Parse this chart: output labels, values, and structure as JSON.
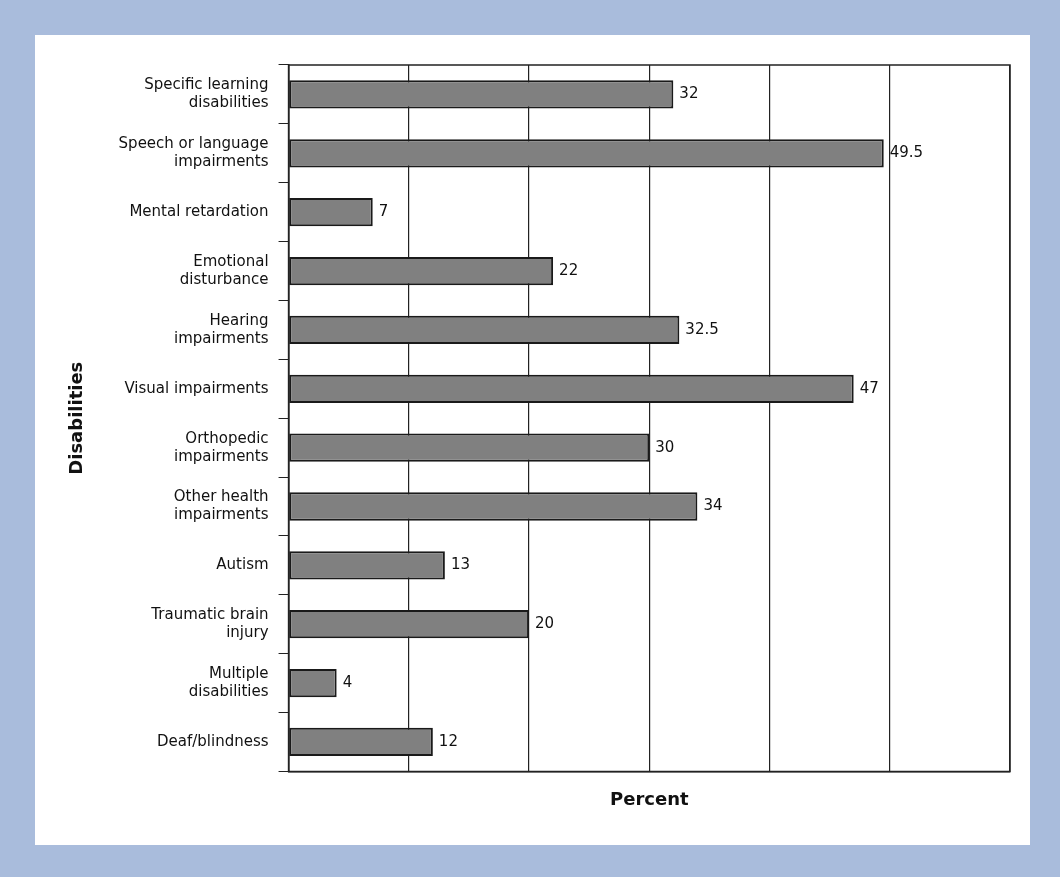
{
  "chart_data": {
    "type": "bar",
    "orientation": "horizontal",
    "xlabel": "Percent",
    "ylabel": "Disabilities",
    "categories": [
      "Specific learning disabilities",
      "Speech or language impairments",
      "Mental retardation",
      "Emotional disturbance",
      "Hearing impairments",
      "Visual impairments",
      "Orthopedic impairments",
      "Other health impairments",
      "Autism",
      "Traumatic brain injury",
      "Multiple disabilities",
      "Deaf/blindness"
    ],
    "values": [
      32,
      49.5,
      7,
      22,
      32.5,
      47,
      30,
      34,
      13,
      20,
      4,
      12
    ],
    "color": "#808080",
    "xlim": [
      0,
      60
    ],
    "grid": "x",
    "legend": false,
    "data_labels": true,
    "tick_labels": "y"
  }
}
